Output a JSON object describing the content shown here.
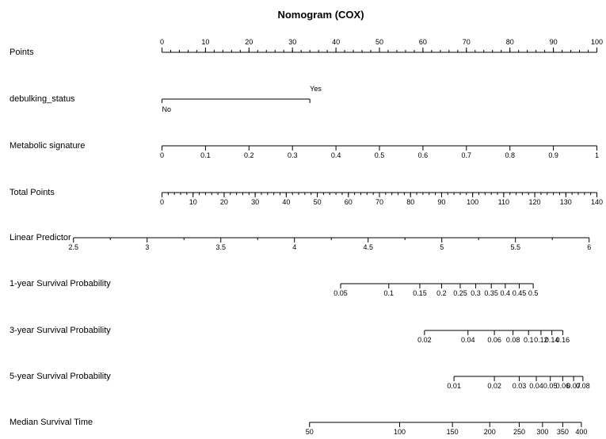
{
  "chart_data": {
    "type": "nomogram",
    "title": "Nomogram (COX)",
    "rows": [
      {
        "id": "points",
        "label": "Points",
        "axis": {
          "min": 0,
          "max": 100
        },
        "major_ticks": [
          0,
          10,
          20,
          30,
          40,
          50,
          60,
          70,
          80,
          90,
          100
        ],
        "minor_step": 2,
        "tick_labels": [
          "0",
          "10",
          "20",
          "30",
          "40",
          "50",
          "60",
          "70",
          "80",
          "90",
          "100"
        ],
        "label_position": "above"
      },
      {
        "id": "debulking-status",
        "label": "debulking_status",
        "type": "categorical",
        "levels": [
          {
            "label": "No",
            "points": 0,
            "label_position": "below"
          },
          {
            "label": "Yes",
            "points": 34,
            "label_position": "above"
          }
        ]
      },
      {
        "id": "metabolic-signature",
        "label": "Metabolic signature",
        "axis": {
          "min": 0,
          "max": 1
        },
        "major_ticks": [
          0,
          0.1,
          0.2,
          0.3,
          0.4,
          0.5,
          0.6,
          0.7,
          0.8,
          0.9,
          1
        ],
        "tick_labels": [
          "0",
          "0.1",
          "0.2",
          "0.3",
          "0.4",
          "0.5",
          "0.6",
          "0.7",
          "0.8",
          "0.9",
          "1"
        ],
        "points_range": [
          0,
          100
        ],
        "label_position": "below"
      },
      {
        "id": "total-points",
        "label": "Total Points",
        "axis": {
          "min": 0,
          "max": 140
        },
        "major_ticks": [
          0,
          10,
          20,
          30,
          40,
          50,
          60,
          70,
          80,
          90,
          100,
          110,
          120,
          130,
          140
        ],
        "minor_step": 2,
        "tick_labels": [
          "0",
          "10",
          "20",
          "30",
          "40",
          "50",
          "60",
          "70",
          "80",
          "90",
          "100",
          "110",
          "120",
          "130",
          "140"
        ],
        "label_position": "below"
      },
      {
        "id": "linear-predictor",
        "label": "Linear Predictor",
        "axis": {
          "min": 2.5,
          "max": 6
        },
        "major_ticks": [
          2.5,
          3,
          3.5,
          4,
          4.5,
          5,
          5.5,
          6
        ],
        "minor_ticks": [
          2.75,
          3.25,
          3.75,
          4.25,
          4.75,
          5.25,
          5.75
        ],
        "tick_labels": [
          "2.5",
          "3",
          "3.5",
          "4",
          "4.5",
          "5",
          "5.5",
          "6"
        ],
        "total_points_range": [
          -28.5,
          137.5
        ],
        "label_position": "below"
      },
      {
        "id": "survival-1yr",
        "label": "1-year Survival Probability",
        "ticks": [
          {
            "value": "0.05",
            "total_points": 57.5
          },
          {
            "value": "0.1",
            "total_points": 73.0
          },
          {
            "value": "0.15",
            "total_points": 83.0
          },
          {
            "value": "0.2",
            "total_points": 90.0
          },
          {
            "value": "0.25",
            "total_points": 96.0
          },
          {
            "value": "0.3",
            "total_points": 101.0
          },
          {
            "value": "0.35",
            "total_points": 106.0
          },
          {
            "value": "0.4",
            "total_points": 110.5
          },
          {
            "value": "0.45",
            "total_points": 115.0
          },
          {
            "value": "0.5",
            "total_points": 119.5
          }
        ],
        "label_position": "below"
      },
      {
        "id": "survival-3yr",
        "label": "3-year Survival Probability",
        "ticks": [
          {
            "value": "0.02",
            "total_points": 84.5
          },
          {
            "value": "0.04",
            "total_points": 98.5
          },
          {
            "value": "0.06",
            "total_points": 107.0
          },
          {
            "value": "0.08",
            "total_points": 113.0
          },
          {
            "value": "0.1",
            "total_points": 118.0
          },
          {
            "value": "0.12",
            "total_points": 122.0
          },
          {
            "value": "0.14",
            "total_points": 125.5
          },
          {
            "value": "0.16",
            "total_points": 129.0
          }
        ],
        "label_position": "below"
      },
      {
        "id": "survival-5yr",
        "label": "5-year Survival Probability",
        "ticks": [
          {
            "value": "0.01",
            "total_points": 94.0
          },
          {
            "value": "0.02",
            "total_points": 107.0
          },
          {
            "value": "0.03",
            "total_points": 115.0
          },
          {
            "value": "0.04",
            "total_points": 120.5
          },
          {
            "value": "0.05",
            "total_points": 125.0
          },
          {
            "value": "0.06",
            "total_points": 129.0
          },
          {
            "value": "0.07",
            "total_points": 132.5
          },
          {
            "value": "0.08",
            "total_points": 135.5
          }
        ],
        "label_position": "below"
      },
      {
        "id": "median-survival",
        "label": "Median Survival Time",
        "ticks": [
          {
            "value": "50",
            "total_points": 47.5
          },
          {
            "value": "100",
            "total_points": 76.5
          },
          {
            "value": "150",
            "total_points": 93.5
          },
          {
            "value": "200",
            "total_points": 105.5
          },
          {
            "value": "250",
            "total_points": 115.0
          },
          {
            "value": "300",
            "total_points": 122.5
          },
          {
            "value": "350",
            "total_points": 129.0
          },
          {
            "value": "400",
            "total_points": 135.0
          }
        ],
        "label_position": "below"
      }
    ]
  }
}
